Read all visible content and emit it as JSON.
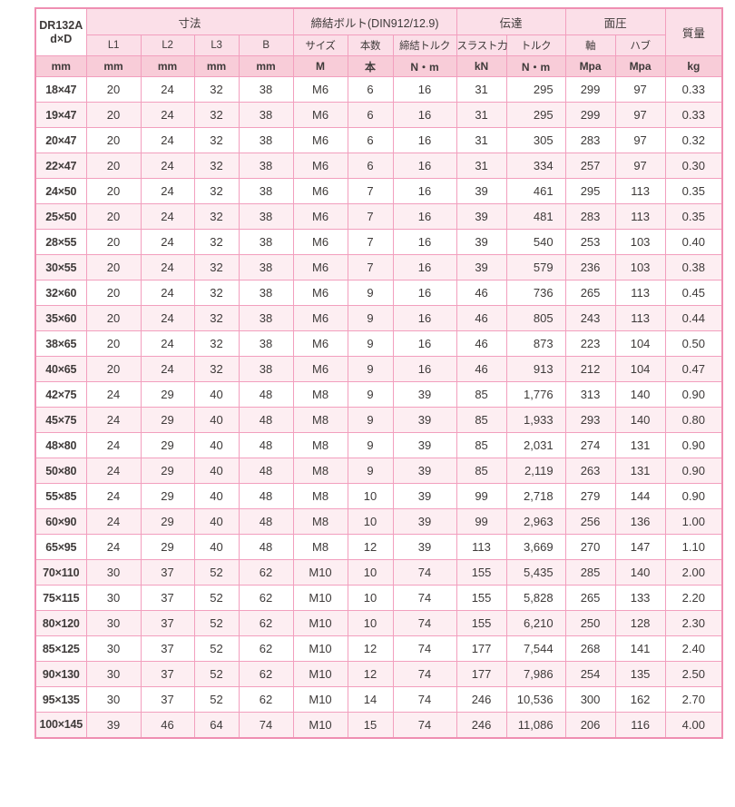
{
  "table": {
    "title_line1": "DR132A",
    "title_line2": "d×D",
    "groups": {
      "dimensions": "寸法",
      "bolt": "締結ボルト(DIN912/12.9)",
      "transmission": "伝達",
      "pressure": "面圧",
      "mass": "質量"
    },
    "subheaders": [
      "L1",
      "L2",
      "L3",
      "B",
      "サイズ",
      "本数",
      "締結トルク",
      "スラスト力",
      "トルク",
      "軸",
      "ハブ"
    ],
    "units": [
      "mm",
      "mm",
      "mm",
      "mm",
      "mm",
      "M",
      "本",
      "N・m",
      "kN",
      "N・m",
      "Mpa",
      "Mpa",
      "kg"
    ],
    "rows": [
      [
        "18×47",
        "20",
        "24",
        "32",
        "38",
        "M6",
        "6",
        "16",
        "31",
        "295",
        "299",
        "97",
        "0.33"
      ],
      [
        "19×47",
        "20",
        "24",
        "32",
        "38",
        "M6",
        "6",
        "16",
        "31",
        "295",
        "299",
        "97",
        "0.33"
      ],
      [
        "20×47",
        "20",
        "24",
        "32",
        "38",
        "M6",
        "6",
        "16",
        "31",
        "305",
        "283",
        "97",
        "0.32"
      ],
      [
        "22×47",
        "20",
        "24",
        "32",
        "38",
        "M6",
        "6",
        "16",
        "31",
        "334",
        "257",
        "97",
        "0.30"
      ],
      [
        "24×50",
        "20",
        "24",
        "32",
        "38",
        "M6",
        "7",
        "16",
        "39",
        "461",
        "295",
        "113",
        "0.35"
      ],
      [
        "25×50",
        "20",
        "24",
        "32",
        "38",
        "M6",
        "7",
        "16",
        "39",
        "481",
        "283",
        "113",
        "0.35"
      ],
      [
        "28×55",
        "20",
        "24",
        "32",
        "38",
        "M6",
        "7",
        "16",
        "39",
        "540",
        "253",
        "103",
        "0.40"
      ],
      [
        "30×55",
        "20",
        "24",
        "32",
        "38",
        "M6",
        "7",
        "16",
        "39",
        "579",
        "236",
        "103",
        "0.38"
      ],
      [
        "32×60",
        "20",
        "24",
        "32",
        "38",
        "M6",
        "9",
        "16",
        "46",
        "736",
        "265",
        "113",
        "0.45"
      ],
      [
        "35×60",
        "20",
        "24",
        "32",
        "38",
        "M6",
        "9",
        "16",
        "46",
        "805",
        "243",
        "113",
        "0.44"
      ],
      [
        "38×65",
        "20",
        "24",
        "32",
        "38",
        "M6",
        "9",
        "16",
        "46",
        "873",
        "223",
        "104",
        "0.50"
      ],
      [
        "40×65",
        "20",
        "24",
        "32",
        "38",
        "M6",
        "9",
        "16",
        "46",
        "913",
        "212",
        "104",
        "0.47"
      ],
      [
        "42×75",
        "24",
        "29",
        "40",
        "48",
        "M8",
        "9",
        "39",
        "85",
        "1,776",
        "313",
        "140",
        "0.90"
      ],
      [
        "45×75",
        "24",
        "29",
        "40",
        "48",
        "M8",
        "9",
        "39",
        "85",
        "1,933",
        "293",
        "140",
        "0.80"
      ],
      [
        "48×80",
        "24",
        "29",
        "40",
        "48",
        "M8",
        "9",
        "39",
        "85",
        "2,031",
        "274",
        "131",
        "0.90"
      ],
      [
        "50×80",
        "24",
        "29",
        "40",
        "48",
        "M8",
        "9",
        "39",
        "85",
        "2,119",
        "263",
        "131",
        "0.90"
      ],
      [
        "55×85",
        "24",
        "29",
        "40",
        "48",
        "M8",
        "10",
        "39",
        "99",
        "2,718",
        "279",
        "144",
        "0.90"
      ],
      [
        "60×90",
        "24",
        "29",
        "40",
        "48",
        "M8",
        "10",
        "39",
        "99",
        "2,963",
        "256",
        "136",
        "1.00"
      ],
      [
        "65×95",
        "24",
        "29",
        "40",
        "48",
        "M8",
        "12",
        "39",
        "113",
        "3,669",
        "270",
        "147",
        "1.10"
      ],
      [
        "70×110",
        "30",
        "37",
        "52",
        "62",
        "M10",
        "10",
        "74",
        "155",
        "5,435",
        "285",
        "140",
        "2.00"
      ],
      [
        "75×115",
        "30",
        "37",
        "52",
        "62",
        "M10",
        "10",
        "74",
        "155",
        "5,828",
        "265",
        "133",
        "2.20"
      ],
      [
        "80×120",
        "30",
        "37",
        "52",
        "62",
        "M10",
        "10",
        "74",
        "155",
        "6,210",
        "250",
        "128",
        "2.30"
      ],
      [
        "85×125",
        "30",
        "37",
        "52",
        "62",
        "M10",
        "12",
        "74",
        "177",
        "7,544",
        "268",
        "141",
        "2.40"
      ],
      [
        "90×130",
        "30",
        "37",
        "52",
        "62",
        "M10",
        "12",
        "74",
        "177",
        "7,986",
        "254",
        "135",
        "2.50"
      ],
      [
        "95×135",
        "30",
        "37",
        "52",
        "62",
        "M10",
        "14",
        "74",
        "246",
        "10,536",
        "300",
        "162",
        "2.70"
      ],
      [
        "100×145",
        "39",
        "46",
        "64",
        "74",
        "M10",
        "15",
        "74",
        "246",
        "11,086",
        "206",
        "116",
        "4.00"
      ]
    ]
  },
  "colors": {
    "border_pink": "#f29fbe",
    "outer_border": "#ef8fb2",
    "header_bg": "#fbdfe8",
    "units_bg": "#f8ccd8",
    "alt_row_bg": "#fdeef2",
    "text": "#3e3a39"
  }
}
